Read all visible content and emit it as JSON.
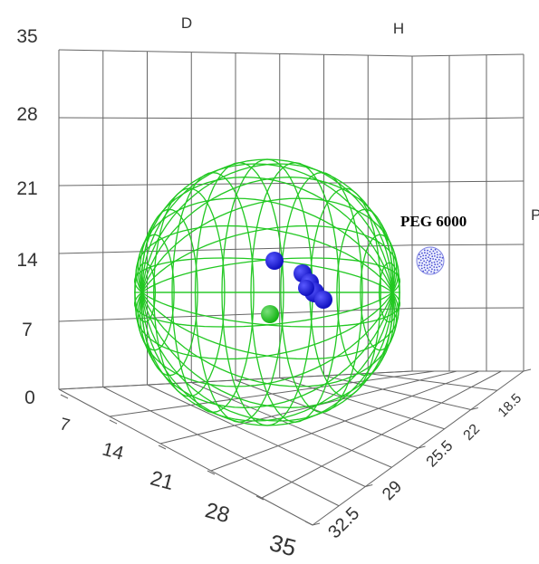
{
  "chart_data": {
    "type": "scatter",
    "projection": "3d",
    "axes": {
      "D": {
        "label": "D",
        "ticks": [
          "7",
          "14",
          "21",
          "28",
          "35"
        ]
      },
      "H": {
        "label": "H",
        "ticks": [
          "32.5",
          "29",
          "25.5",
          "22",
          "18.5"
        ]
      },
      "P": {
        "label": "P",
        "ticks": [
          "0",
          "7",
          "14",
          "21",
          "28",
          "35"
        ]
      }
    },
    "grid": true,
    "series": [
      {
        "color": "#1010c0",
        "role": "points",
        "count": 6
      },
      {
        "color": "#14b414",
        "role": "center",
        "count": 1
      },
      {
        "color": "#22c822",
        "role": "solubility-sphere",
        "wireframe": true
      },
      {
        "color": "#7a7fe0",
        "role": "outlier",
        "count": 1
      }
    ],
    "annotations": [
      {
        "text": "PEG 6000"
      }
    ]
  },
  "colors": {
    "grid": "#666666",
    "sphere": "#22c822",
    "points": "#1010c0",
    "center": "#14b414"
  }
}
